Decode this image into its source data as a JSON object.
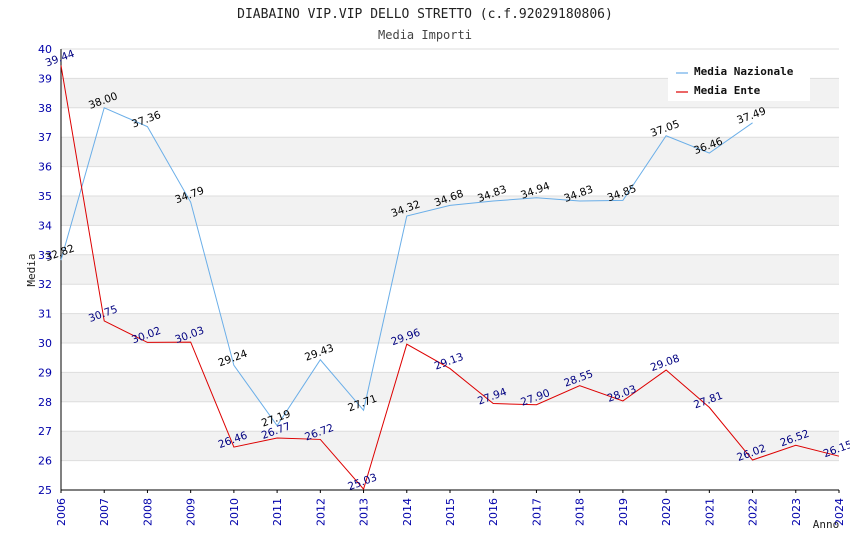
{
  "chart_data": {
    "type": "line",
    "title": "DIABAINO VIP.VIP DELLO STRETTO (c.f.92029180806)",
    "subtitle": "Media Importi",
    "xlabel": "Anno",
    "ylabel": "Media",
    "ylim": [
      25,
      40
    ],
    "yticks": [
      25,
      26,
      27,
      28,
      29,
      30,
      31,
      32,
      33,
      34,
      35,
      36,
      37,
      38,
      39,
      40
    ],
    "x": [
      "2006",
      "2007",
      "2008",
      "2009",
      "2010",
      "2011",
      "2012",
      "2013",
      "2014",
      "2015",
      "2016",
      "2017",
      "2018",
      "2019",
      "2020",
      "2021",
      "2022",
      "2023",
      "2024"
    ],
    "legend_position": "top-right",
    "series": [
      {
        "name": "Media Nazionale",
        "color": "#6aaee8",
        "label_color": "#000000",
        "values": [
          32.82,
          38.0,
          37.36,
          34.79,
          29.24,
          27.19,
          29.43,
          27.71,
          34.32,
          34.68,
          34.83,
          34.94,
          34.83,
          34.85,
          37.05,
          36.46,
          37.49,
          null,
          null
        ],
        "labels": [
          "32.82",
          "38.00",
          "37.36",
          "34.79",
          "29.24",
          "27.19",
          "29.43",
          "27.71",
          "34.32",
          "34.68",
          "34.83",
          "34.94",
          "34.83",
          "34.85",
          "37.05",
          "36.46",
          "37.49",
          null,
          null
        ]
      },
      {
        "name": "Media Ente",
        "color": "#dd0000",
        "label_color": "#000080",
        "values": [
          39.44,
          30.75,
          30.02,
          30.03,
          26.46,
          26.77,
          26.72,
          25.03,
          29.96,
          29.13,
          27.94,
          27.9,
          28.55,
          28.03,
          29.08,
          27.81,
          26.02,
          26.52,
          26.15
        ],
        "labels": [
          "39.44",
          "30.75",
          "30.02",
          "30.03",
          "26.46",
          "26.77",
          "26.72",
          "25.03",
          "29.96",
          "29.13",
          "27.94",
          "27.90",
          "28.55",
          "28.03",
          "29.08",
          "27.81",
          "26.02",
          "26.52",
          "26.15"
        ]
      }
    ]
  }
}
